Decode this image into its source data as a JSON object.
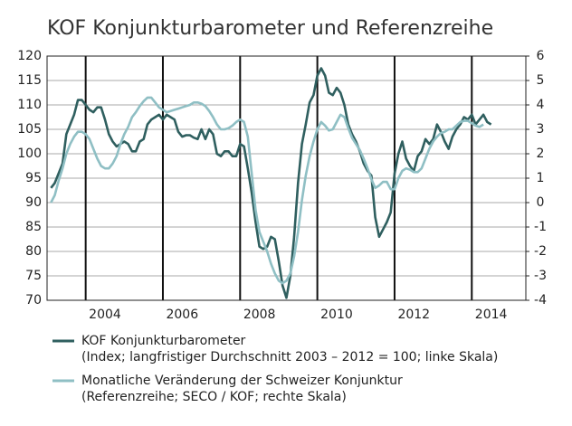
{
  "chart_data": {
    "type": "line",
    "title": "KOF Konjunkturbarometer und Referenzreihe",
    "x": [
      2003.1,
      2003.2,
      2003.3,
      2003.4,
      2003.5,
      2003.6,
      2003.7,
      2003.8,
      2003.9,
      2004.0,
      2004.1,
      2004.2,
      2004.3,
      2004.4,
      2004.5,
      2004.6,
      2004.7,
      2004.8,
      2004.9,
      2005.0,
      2005.1,
      2005.2,
      2005.3,
      2005.4,
      2005.5,
      2005.6,
      2005.7,
      2005.8,
      2005.9,
      2006.0,
      2006.1,
      2006.2,
      2006.3,
      2006.4,
      2006.5,
      2006.6,
      2006.7,
      2006.8,
      2006.9,
      2007.0,
      2007.1,
      2007.2,
      2007.3,
      2007.4,
      2007.5,
      2007.6,
      2007.7,
      2007.8,
      2007.9,
      2008.0,
      2008.1,
      2008.2,
      2008.3,
      2008.4,
      2008.5,
      2008.6,
      2008.7,
      2008.8,
      2008.9,
      2009.0,
      2009.1,
      2009.2,
      2009.3,
      2009.4,
      2009.5,
      2009.6,
      2009.7,
      2009.8,
      2009.9,
      2010.0,
      2010.1,
      2010.2,
      2010.3,
      2010.4,
      2010.5,
      2010.6,
      2010.7,
      2010.8,
      2010.9,
      2011.0,
      2011.1,
      2011.2,
      2011.3,
      2011.4,
      2011.5,
      2011.6,
      2011.7,
      2011.8,
      2011.9,
      2012.0,
      2012.1,
      2012.2,
      2012.3,
      2012.4,
      2012.5,
      2012.6,
      2012.7,
      2012.8,
      2012.9,
      2013.0,
      2013.1,
      2013.2,
      2013.3,
      2013.4,
      2013.5,
      2013.6,
      2013.7,
      2013.8,
      2013.9,
      2014.0,
      2014.1,
      2014.2,
      2014.3,
      2014.4,
      2014.5
    ],
    "series": [
      {
        "name": "KOF Konjunkturbarometer",
        "description": "(Index; langfristiger Durchschnitt 2003 – 2012 = 100; linke Skala)",
        "color": "#2f5f5f",
        "values": [
          93,
          94,
          96,
          98,
          104,
          106,
          108,
          111,
          111,
          110,
          109,
          108.5,
          109.5,
          109.5,
          107,
          104,
          102.5,
          101.5,
          102,
          102.5,
          102,
          100.5,
          100.5,
          102.5,
          103,
          106,
          107,
          107.5,
          108,
          107,
          108,
          107.5,
          107,
          104.5,
          103.5,
          103.8,
          103.8,
          103.3,
          103,
          105,
          103,
          105,
          104,
          100,
          99.5,
          100.5,
          100.5,
          99.5,
          99.5,
          102,
          101.5,
          97,
          92,
          86,
          81,
          80.5,
          81,
          83,
          82.5,
          78,
          73,
          70.5,
          75,
          83,
          94,
          102,
          106,
          110.5,
          112,
          116,
          117.5,
          116,
          112.5,
          112,
          113.5,
          112.5,
          110,
          106,
          104,
          102.5,
          100.5,
          98,
          96.5,
          95.5,
          87,
          83,
          84.5,
          86,
          88,
          96,
          100,
          102.5,
          99,
          97.5,
          96.5,
          99.5,
          100.5,
          103,
          102,
          103,
          106,
          104.5,
          102.5,
          101,
          103.5,
          105,
          106,
          107.5,
          107,
          108,
          106,
          107,
          108,
          106.5,
          106
        ]
      },
      {
        "name": "Monatliche Veränderung der Schweizer Konjunktur",
        "description": "(Referenzreihe; SECO / KOF; rechte Skala)",
        "color": "#8fbfc4",
        "axis": "y2",
        "values": [
          0.0,
          0.3,
          0.9,
          1.4,
          2.0,
          2.4,
          2.7,
          2.9,
          2.9,
          2.8,
          2.6,
          2.2,
          1.8,
          1.5,
          1.4,
          1.4,
          1.6,
          1.9,
          2.4,
          2.8,
          3.1,
          3.5,
          3.7,
          3.95,
          4.15,
          4.3,
          4.3,
          4.1,
          3.9,
          3.8,
          3.7,
          3.75,
          3.8,
          3.85,
          3.9,
          3.95,
          4.0,
          4.1,
          4.1,
          4.05,
          3.95,
          3.75,
          3.5,
          3.2,
          3.0,
          3.0,
          3.05,
          3.15,
          3.3,
          3.4,
          3.3,
          2.7,
          1.2,
          -0.3,
          -1.2,
          -1.6,
          -2.0,
          -2.5,
          -2.9,
          -3.2,
          -3.3,
          -3.2,
          -2.9,
          -2.2,
          -1.2,
          0.1,
          1.1,
          1.9,
          2.5,
          3.0,
          3.3,
          3.15,
          2.95,
          3.0,
          3.3,
          3.6,
          3.5,
          3.05,
          2.65,
          2.4,
          2.15,
          1.8,
          1.4,
          0.95,
          0.6,
          0.7,
          0.85,
          0.85,
          0.55,
          0.55,
          1.0,
          1.3,
          1.4,
          1.35,
          1.25,
          1.25,
          1.4,
          1.8,
          2.2,
          2.5,
          2.7,
          2.85,
          2.9,
          3.0,
          3.0,
          3.15,
          3.3,
          3.35,
          3.35,
          3.25,
          3.15,
          3.1,
          3.2,
          null,
          null
        ]
      }
    ],
    "xlim": [
      2003,
      2015.4
    ],
    "xticks": [
      2004,
      2006,
      2008,
      2010,
      2012,
      2014
    ],
    "ylim": [
      70,
      120
    ],
    "yticks": [
      70,
      75,
      80,
      85,
      90,
      95,
      100,
      105,
      110,
      115,
      120
    ],
    "y2lim": [
      -4,
      6
    ],
    "y2ticks": [
      -4,
      -3,
      -2,
      -1,
      0,
      1,
      2,
      3,
      4,
      5,
      6
    ],
    "grid": true
  }
}
